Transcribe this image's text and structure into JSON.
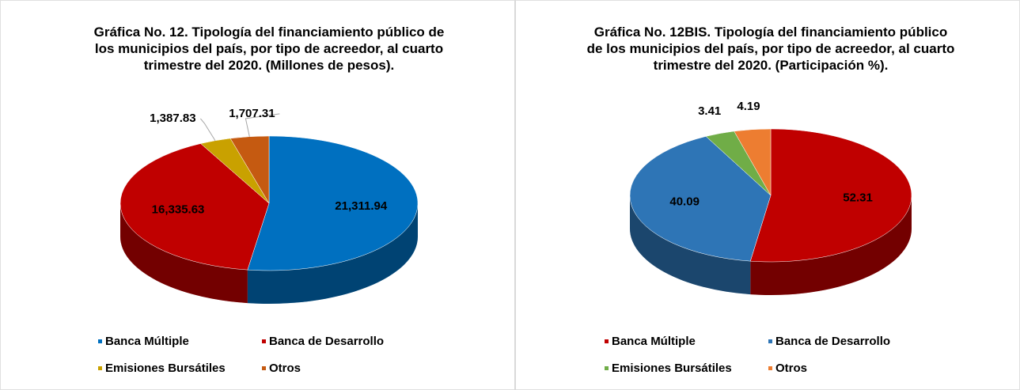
{
  "chart_data": [
    {
      "type": "pie3d",
      "title": "Gráfica No. 12. Tipología del financiamiento público de los municipios del país, por tipo de acreedor, al cuarto trimestre del 2020. (Millones de pesos).",
      "categories": [
        "Banca Múltiple",
        "Banca de Desarrollo",
        "Emisiones Bursátiles",
        "Otros"
      ],
      "values": [
        21311.94,
        16335.63,
        1387.83,
        1707.31
      ],
      "value_labels": [
        "21,311.94",
        "16,335.63",
        "1,387.83",
        "1,707.31"
      ],
      "colors": [
        "#0070c0",
        "#c00000",
        "#c9a100",
        "#c55a11"
      ],
      "legend": "bottom"
    },
    {
      "type": "pie3d",
      "title": "Gráfica No. 12BIS. Tipología del financiamiento público de los municipios del país, por tipo de acreedor, al cuarto trimestre del 2020. (Participación %).",
      "categories": [
        "Banca Múltiple",
        "Banca de Desarrollo",
        "Emisiones Bursátiles",
        "Otros"
      ],
      "values": [
        52.31,
        40.09,
        3.41,
        4.19
      ],
      "colors": [
        "#c00000",
        "#2e75b6",
        "#70ad47",
        "#ed7d31"
      ],
      "legend": "bottom"
    }
  ]
}
